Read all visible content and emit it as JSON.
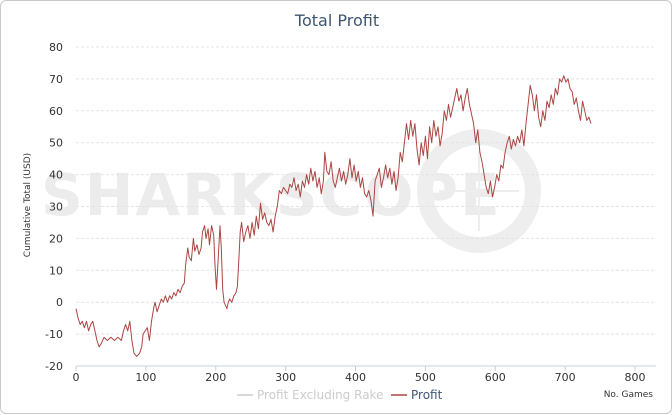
{
  "chart_data": {
    "type": "line",
    "title": "Total Profit",
    "xlabel": "No. Games",
    "ylabel": "Cumulative Total (USD)",
    "xlim": [
      0,
      830
    ],
    "ylim": [
      -20,
      80
    ],
    "x_ticks": [
      0,
      100,
      200,
      300,
      400,
      500,
      600,
      700,
      800
    ],
    "y_ticks": [
      -20,
      -10,
      0,
      10,
      20,
      30,
      40,
      50,
      60,
      70,
      80
    ],
    "grid": true,
    "legend_position": "bottom-center",
    "watermark": "SHARKSCOPE",
    "series": [
      {
        "name": "Profit Excluding Rake",
        "color": "#cccccc",
        "points": []
      },
      {
        "name": "Profit",
        "color": "#aa4643",
        "points": [
          [
            0,
            -2
          ],
          [
            3,
            -5
          ],
          [
            6,
            -7
          ],
          [
            9,
            -6
          ],
          [
            12,
            -8
          ],
          [
            15,
            -6
          ],
          [
            18,
            -9
          ],
          [
            21,
            -7
          ],
          [
            24,
            -6
          ],
          [
            27,
            -9
          ],
          [
            30,
            -12
          ],
          [
            33,
            -14
          ],
          [
            36,
            -13
          ],
          [
            40,
            -11
          ],
          [
            45,
            -12
          ],
          [
            50,
            -11
          ],
          [
            55,
            -12
          ],
          [
            60,
            -11
          ],
          [
            65,
            -12
          ],
          [
            68,
            -9
          ],
          [
            71,
            -7
          ],
          [
            74,
            -9
          ],
          [
            77,
            -6
          ],
          [
            80,
            -12
          ],
          [
            83,
            -16
          ],
          [
            87,
            -17
          ],
          [
            91,
            -16
          ],
          [
            94,
            -14
          ],
          [
            96,
            -10
          ],
          [
            99,
            -9
          ],
          [
            102,
            -8
          ],
          [
            105,
            -12
          ],
          [
            108,
            -6
          ],
          [
            111,
            -2
          ],
          [
            113,
            0
          ],
          [
            116,
            -3
          ],
          [
            119,
            -1
          ],
          [
            122,
            1
          ],
          [
            125,
            0
          ],
          [
            128,
            2
          ],
          [
            131,
            0
          ],
          [
            134,
            2
          ],
          [
            137,
            1
          ],
          [
            140,
            3
          ],
          [
            143,
            2
          ],
          [
            146,
            4
          ],
          [
            149,
            3
          ],
          [
            152,
            5
          ],
          [
            155,
            6
          ],
          [
            157,
            12
          ],
          [
            160,
            17
          ],
          [
            162,
            14
          ],
          [
            165,
            13
          ],
          [
            168,
            20
          ],
          [
            170,
            16
          ],
          [
            173,
            18
          ],
          [
            176,
            15
          ],
          [
            179,
            17
          ],
          [
            181,
            22
          ],
          [
            184,
            24
          ],
          [
            186,
            20
          ],
          [
            189,
            23
          ],
          [
            191,
            18
          ],
          [
            194,
            24
          ],
          [
            197,
            21
          ],
          [
            199,
            11
          ],
          [
            201,
            4
          ],
          [
            204,
            16
          ],
          [
            206,
            24
          ],
          [
            208,
            17
          ],
          [
            210,
            4
          ],
          [
            212,
            0
          ],
          [
            214,
            -1
          ],
          [
            216,
            -2
          ],
          [
            218,
            0
          ],
          [
            220,
            1
          ],
          [
            223,
            0
          ],
          [
            226,
            2
          ],
          [
            229,
            3
          ],
          [
            231,
            5
          ],
          [
            233,
            13
          ],
          [
            235,
            22
          ],
          [
            237,
            25
          ],
          [
            240,
            19
          ],
          [
            243,
            22
          ],
          [
            246,
            24
          ],
          [
            249,
            20
          ],
          [
            252,
            25
          ],
          [
            255,
            21
          ],
          [
            258,
            27
          ],
          [
            261,
            23
          ],
          [
            264,
            31
          ],
          [
            267,
            26
          ],
          [
            270,
            28
          ],
          [
            273,
            25
          ],
          [
            276,
            24
          ],
          [
            279,
            26
          ],
          [
            282,
            22
          ],
          [
            285,
            27
          ],
          [
            288,
            30
          ],
          [
            291,
            35
          ],
          [
            294,
            34
          ],
          [
            297,
            36
          ],
          [
            300,
            35
          ],
          [
            303,
            34
          ],
          [
            306,
            37
          ],
          [
            309,
            36
          ],
          [
            312,
            39
          ],
          [
            315,
            35
          ],
          [
            318,
            37
          ],
          [
            321,
            33
          ],
          [
            324,
            38
          ],
          [
            327,
            36
          ],
          [
            330,
            40
          ],
          [
            333,
            37
          ],
          [
            336,
            42
          ],
          [
            339,
            38
          ],
          [
            342,
            41
          ],
          [
            345,
            36
          ],
          [
            348,
            39
          ],
          [
            351,
            34
          ],
          [
            354,
            38
          ],
          [
            356,
            47
          ],
          [
            359,
            41
          ],
          [
            362,
            40
          ],
          [
            365,
            44
          ],
          [
            368,
            38
          ],
          [
            371,
            36
          ],
          [
            374,
            39
          ],
          [
            377,
            42
          ],
          [
            380,
            38
          ],
          [
            383,
            41
          ],
          [
            386,
            37
          ],
          [
            389,
            40
          ],
          [
            392,
            45
          ],
          [
            395,
            39
          ],
          [
            398,
            43
          ],
          [
            401,
            38
          ],
          [
            404,
            41
          ],
          [
            407,
            36
          ],
          [
            410,
            39
          ],
          [
            413,
            34
          ],
          [
            416,
            33
          ],
          [
            419,
            35
          ],
          [
            422,
            32
          ],
          [
            425,
            27
          ],
          [
            428,
            38
          ],
          [
            431,
            40
          ],
          [
            434,
            42
          ],
          [
            437,
            36
          ],
          [
            440,
            39
          ],
          [
            443,
            43
          ],
          [
            446,
            39
          ],
          [
            449,
            42
          ],
          [
            452,
            37
          ],
          [
            455,
            41
          ],
          [
            458,
            35
          ],
          [
            461,
            39
          ],
          [
            464,
            47
          ],
          [
            467,
            44
          ],
          [
            470,
            50
          ],
          [
            473,
            56
          ],
          [
            476,
            51
          ],
          [
            479,
            57
          ],
          [
            482,
            52
          ],
          [
            485,
            56
          ],
          [
            488,
            48
          ],
          [
            491,
            43
          ],
          [
            494,
            50
          ],
          [
            497,
            46
          ],
          [
            500,
            52
          ],
          [
            503,
            45
          ],
          [
            506,
            55
          ],
          [
            509,
            50
          ],
          [
            512,
            57
          ],
          [
            515,
            52
          ],
          [
            518,
            55
          ],
          [
            521,
            49
          ],
          [
            524,
            53
          ],
          [
            527,
            60
          ],
          [
            530,
            57
          ],
          [
            533,
            62
          ],
          [
            536,
            58
          ],
          [
            539,
            61
          ],
          [
            542,
            64
          ],
          [
            545,
            67
          ],
          [
            548,
            63
          ],
          [
            551,
            65
          ],
          [
            554,
            60
          ],
          [
            557,
            64
          ],
          [
            560,
            67
          ],
          [
            563,
            62
          ],
          [
            566,
            59
          ],
          [
            569,
            56
          ],
          [
            572,
            50
          ],
          [
            575,
            54
          ],
          [
            578,
            47
          ],
          [
            581,
            44
          ],
          [
            584,
            40
          ],
          [
            587,
            36
          ],
          [
            590,
            34
          ],
          [
            593,
            38
          ],
          [
            596,
            33
          ],
          [
            599,
            36
          ],
          [
            602,
            40
          ],
          [
            605,
            38
          ],
          [
            608,
            43
          ],
          [
            611,
            42
          ],
          [
            614,
            47
          ],
          [
            617,
            50
          ],
          [
            620,
            52
          ],
          [
            623,
            48
          ],
          [
            626,
            51
          ],
          [
            629,
            49
          ],
          [
            632,
            52
          ],
          [
            635,
            50
          ],
          [
            638,
            54
          ],
          [
            641,
            49
          ],
          [
            644,
            56
          ],
          [
            647,
            62
          ],
          [
            650,
            68
          ],
          [
            653,
            65
          ],
          [
            656,
            60
          ],
          [
            659,
            65
          ],
          [
            662,
            58
          ],
          [
            665,
            55
          ],
          [
            668,
            60
          ],
          [
            671,
            57
          ],
          [
            674,
            63
          ],
          [
            677,
            61
          ],
          [
            680,
            65
          ],
          [
            683,
            62
          ],
          [
            686,
            67
          ],
          [
            689,
            65
          ],
          [
            692,
            70
          ],
          [
            695,
            69
          ],
          [
            698,
            71
          ],
          [
            701,
            69
          ],
          [
            704,
            70
          ],
          [
            707,
            67
          ],
          [
            710,
            66
          ],
          [
            713,
            62
          ],
          [
            716,
            64
          ],
          [
            719,
            60
          ],
          [
            722,
            57
          ],
          [
            725,
            63
          ],
          [
            728,
            60
          ],
          [
            731,
            57
          ],
          [
            734,
            58
          ],
          [
            737,
            56
          ]
        ]
      }
    ]
  }
}
